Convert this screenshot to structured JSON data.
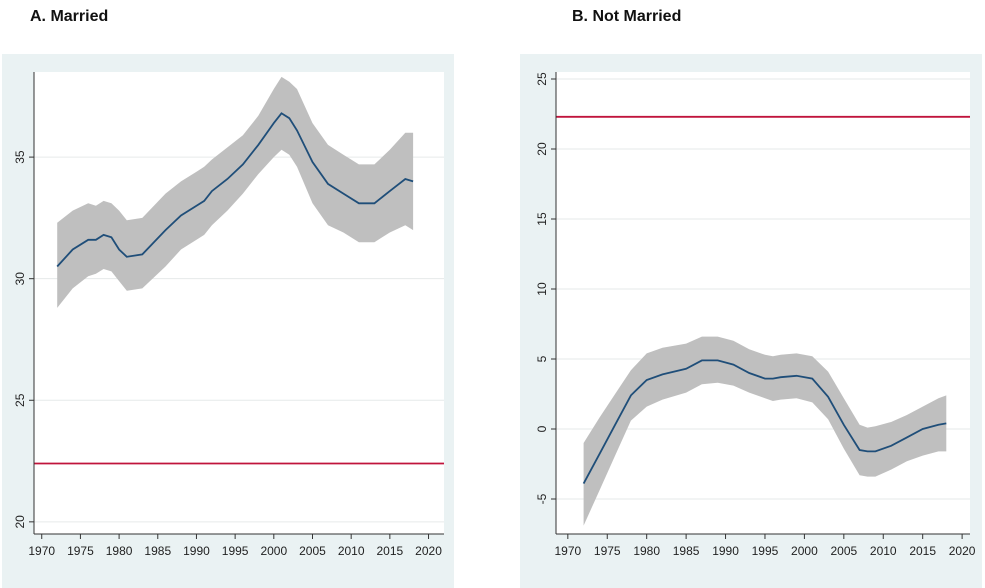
{
  "panels": {
    "a": {
      "title": "A.  Married"
    },
    "b": {
      "title": "B. Not Married"
    }
  },
  "colors": {
    "panel_bg": "#eaf2f3",
    "plot_bg": "#ffffff",
    "grid": "#e6eaea",
    "band": "#bfbfbf",
    "line": "#1f4e79",
    "reference": "#c0143c"
  },
  "chart_data": [
    {
      "type": "line",
      "title": "A.  Married",
      "xlim": [
        1969,
        2022
      ],
      "ylim": [
        19.5,
        38.5
      ],
      "xticks": [
        1970,
        1975,
        1980,
        1985,
        1990,
        1995,
        2000,
        2005,
        2010,
        2015,
        2020
      ],
      "yticks": [
        20,
        25,
        30,
        35
      ],
      "grid": true,
      "x": [
        1972,
        1974,
        1976,
        1977,
        1978,
        1979,
        1980,
        1981,
        1983,
        1986,
        1988,
        1990,
        1991,
        1992,
        1994,
        1996,
        1998,
        2000,
        2001,
        2002,
        2003,
        2005,
        2007,
        2009,
        2011,
        2013,
        2015,
        2017,
        2018
      ],
      "series": [
        {
          "role": "estimate",
          "values": [
            30.5,
            31.2,
            31.6,
            31.6,
            31.8,
            31.7,
            31.2,
            30.9,
            31.0,
            32.0,
            32.6,
            33.0,
            33.2,
            33.6,
            34.1,
            34.7,
            35.5,
            36.4,
            36.8,
            36.6,
            36.1,
            34.8,
            33.9,
            33.5,
            33.1,
            33.1,
            33.6,
            34.1,
            34.0
          ]
        },
        {
          "role": "upper",
          "values": [
            32.3,
            32.8,
            33.1,
            33.0,
            33.2,
            33.1,
            32.8,
            32.4,
            32.5,
            33.5,
            34.0,
            34.4,
            34.6,
            34.9,
            35.4,
            35.9,
            36.7,
            37.8,
            38.3,
            38.1,
            37.8,
            36.4,
            35.5,
            35.1,
            34.7,
            34.7,
            35.3,
            36.0,
            36.0
          ]
        },
        {
          "role": "lower",
          "values": [
            28.8,
            29.6,
            30.1,
            30.2,
            30.4,
            30.3,
            29.9,
            29.5,
            29.6,
            30.5,
            31.2,
            31.6,
            31.8,
            32.2,
            32.8,
            33.5,
            34.3,
            35.0,
            35.3,
            35.1,
            34.6,
            33.1,
            32.2,
            31.9,
            31.5,
            31.5,
            31.9,
            32.2,
            32.0
          ]
        }
      ],
      "reference_line": 22.4
    },
    {
      "type": "line",
      "title": "B. Not Married",
      "xlim": [
        1968.5,
        2021
      ],
      "ylim": [
        -7.5,
        25.5
      ],
      "xticks": [
        1970,
        1975,
        1980,
        1985,
        1990,
        1995,
        2000,
        2005,
        2010,
        2015,
        2020
      ],
      "yticks": [
        -5,
        0,
        5,
        10,
        15,
        20,
        25
      ],
      "grid": true,
      "x": [
        1972,
        1974,
        1976,
        1978,
        1980,
        1982,
        1985,
        1987,
        1989,
        1991,
        1993,
        1995,
        1996,
        1997,
        1999,
        2001,
        2003,
        2005,
        2007,
        2008,
        2009,
        2011,
        2013,
        2015,
        2017,
        2018
      ],
      "series": [
        {
          "role": "estimate",
          "values": [
            -3.9,
            -1.8,
            0.3,
            2.4,
            3.5,
            3.9,
            4.3,
            4.9,
            4.9,
            4.6,
            4.0,
            3.6,
            3.6,
            3.7,
            3.8,
            3.6,
            2.3,
            0.3,
            -1.5,
            -1.6,
            -1.6,
            -1.2,
            -0.6,
            0.0,
            0.3,
            0.4
          ]
        },
        {
          "role": "upper",
          "values": [
            -1.0,
            0.8,
            2.5,
            4.2,
            5.4,
            5.8,
            6.1,
            6.6,
            6.6,
            6.3,
            5.7,
            5.3,
            5.2,
            5.3,
            5.4,
            5.2,
            4.1,
            2.2,
            0.3,
            0.1,
            0.2,
            0.5,
            1.0,
            1.6,
            2.2,
            2.4
          ]
        },
        {
          "role": "lower",
          "values": [
            -6.9,
            -4.4,
            -1.9,
            0.6,
            1.6,
            2.1,
            2.6,
            3.2,
            3.3,
            3.1,
            2.6,
            2.2,
            2.0,
            2.1,
            2.2,
            1.9,
            0.7,
            -1.4,
            -3.3,
            -3.4,
            -3.4,
            -2.9,
            -2.3,
            -1.9,
            -1.6,
            -1.6
          ]
        }
      ],
      "reference_line": 22.3
    }
  ]
}
